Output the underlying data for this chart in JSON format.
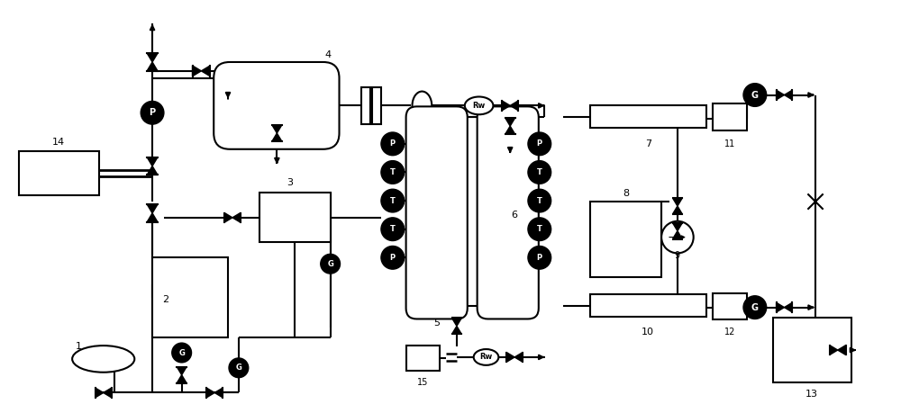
{
  "bg_color": "#ffffff",
  "lc": "#000000",
  "lw": 1.5,
  "figsize": [
    10.0,
    4.59
  ],
  "xlim": [
    0,
    10
  ],
  "ylim": [
    0,
    4.59
  ]
}
